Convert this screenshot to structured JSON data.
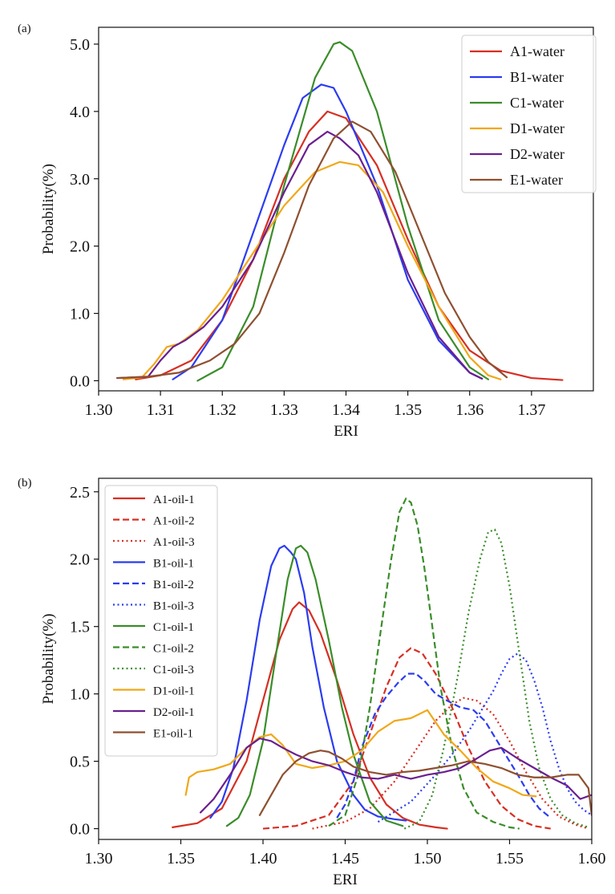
{
  "chart_data": [
    {
      "type": "line",
      "panel_label": "(a)",
      "xlabel": "ERI",
      "ylabel": "Probability(%)",
      "xlim": [
        1.3,
        1.38
      ],
      "ylim": [
        -0.15,
        5.25
      ],
      "xticks": [
        1.3,
        1.31,
        1.32,
        1.33,
        1.34,
        1.35,
        1.36,
        1.37
      ],
      "xtick_labels": [
        "1.30",
        "1.31",
        "1.32",
        "1.33",
        "1.34",
        "1.35",
        "1.36",
        "1.37"
      ],
      "yticks": [
        0,
        1,
        2,
        3,
        4,
        5
      ],
      "ytick_labels": [
        "0.0",
        "1.0",
        "2.0",
        "3.0",
        "4.0",
        "5.0"
      ],
      "grid": false,
      "legend_position": "top-right",
      "series": [
        {
          "name": "A1-water",
          "color": "#d62f23",
          "style": "solid",
          "x": [
            1.306,
            1.31,
            1.315,
            1.32,
            1.325,
            1.33,
            1.334,
            1.337,
            1.34,
            1.345,
            1.35,
            1.355,
            1.36,
            1.365,
            1.37,
            1.375
          ],
          "y": [
            0.02,
            0.08,
            0.3,
            0.9,
            1.8,
            3.0,
            3.7,
            4.0,
            3.9,
            3.2,
            2.1,
            1.1,
            0.45,
            0.15,
            0.04,
            0.01
          ]
        },
        {
          "name": "B1-water",
          "color": "#2b3cf0",
          "style": "solid",
          "x": [
            1.312,
            1.315,
            1.32,
            1.325,
            1.33,
            1.333,
            1.336,
            1.338,
            1.34,
            1.345,
            1.35,
            1.355,
            1.36,
            1.362
          ],
          "y": [
            0.02,
            0.2,
            0.9,
            2.2,
            3.5,
            4.2,
            4.4,
            4.35,
            4.0,
            2.9,
            1.5,
            0.6,
            0.12,
            0.03
          ]
        },
        {
          "name": "C1-water",
          "color": "#3a8d2a",
          "style": "solid",
          "x": [
            1.316,
            1.32,
            1.325,
            1.33,
            1.335,
            1.338,
            1.339,
            1.341,
            1.345,
            1.35,
            1.355,
            1.36,
            1.363
          ],
          "y": [
            0.0,
            0.2,
            1.1,
            2.9,
            4.5,
            5.0,
            5.03,
            4.9,
            4.0,
            2.3,
            0.9,
            0.2,
            0.02
          ]
        },
        {
          "name": "D1-water",
          "color": "#f0a818",
          "style": "solid",
          "x": [
            1.304,
            1.307,
            1.309,
            1.311,
            1.313,
            1.316,
            1.32,
            1.325,
            1.33,
            1.335,
            1.339,
            1.342,
            1.346,
            1.35,
            1.355,
            1.36,
            1.363,
            1.365
          ],
          "y": [
            0.02,
            0.05,
            0.25,
            0.5,
            0.55,
            0.75,
            1.2,
            1.9,
            2.6,
            3.1,
            3.25,
            3.2,
            2.8,
            2.0,
            1.1,
            0.35,
            0.08,
            0.02
          ]
        },
        {
          "name": "D2-water",
          "color": "#6a1f8f",
          "style": "solid",
          "x": [
            1.303,
            1.308,
            1.31,
            1.312,
            1.314,
            1.317,
            1.32,
            1.325,
            1.33,
            1.334,
            1.337,
            1.339,
            1.342,
            1.345,
            1.35,
            1.355,
            1.36,
            1.362
          ],
          "y": [
            0.04,
            0.06,
            0.3,
            0.5,
            0.6,
            0.8,
            1.1,
            1.8,
            2.8,
            3.5,
            3.7,
            3.6,
            3.35,
            2.8,
            1.6,
            0.65,
            0.12,
            0.03
          ]
        },
        {
          "name": "E1-water",
          "color": "#8e5030",
          "style": "solid",
          "x": [
            1.303,
            1.308,
            1.313,
            1.318,
            1.322,
            1.326,
            1.33,
            1.334,
            1.338,
            1.341,
            1.344,
            1.348,
            1.352,
            1.356,
            1.36,
            1.363,
            1.366
          ],
          "y": [
            0.04,
            0.06,
            0.12,
            0.3,
            0.55,
            1.0,
            1.9,
            2.9,
            3.6,
            3.85,
            3.7,
            3.1,
            2.2,
            1.3,
            0.65,
            0.28,
            0.05
          ]
        }
      ]
    },
    {
      "type": "line",
      "panel_label": "(b)",
      "xlabel": "ERI",
      "ylabel": "Probability(%)",
      "xlim": [
        1.3,
        1.6
      ],
      "ylim": [
        -0.08,
        2.6
      ],
      "xticks": [
        1.3,
        1.35,
        1.4,
        1.45,
        1.5,
        1.55,
        1.6
      ],
      "xtick_labels": [
        "1.30",
        "1.35",
        "1.40",
        "1.45",
        "1.50",
        "1.55",
        "1.60"
      ],
      "yticks": [
        0,
        0.5,
        1.0,
        1.5,
        2.0,
        2.5
      ],
      "ytick_labels": [
        "0.0",
        "0.5",
        "1.0",
        "1.5",
        "2.0",
        "2.5"
      ],
      "grid": false,
      "legend_position": "top-left",
      "series": [
        {
          "name": "A1-oil-1",
          "color": "#d62f23",
          "style": "solid",
          "x": [
            1.345,
            1.36,
            1.375,
            1.39,
            1.4,
            1.41,
            1.418,
            1.422,
            1.428,
            1.435,
            1.445,
            1.455,
            1.465,
            1.475,
            1.485,
            1.495,
            1.505,
            1.512
          ],
          "y": [
            0.01,
            0.04,
            0.15,
            0.5,
            0.95,
            1.4,
            1.63,
            1.68,
            1.62,
            1.45,
            1.1,
            0.7,
            0.38,
            0.18,
            0.08,
            0.03,
            0.01,
            0.0
          ]
        },
        {
          "name": "A1-oil-2",
          "color": "#d62f23",
          "style": "dashed",
          "x": [
            1.4,
            1.42,
            1.44,
            1.455,
            1.465,
            1.475,
            1.483,
            1.49,
            1.497,
            1.505,
            1.515,
            1.525,
            1.535,
            1.545,
            1.555,
            1.565,
            1.575
          ],
          "y": [
            0.0,
            0.02,
            0.1,
            0.35,
            0.7,
            1.05,
            1.27,
            1.34,
            1.3,
            1.15,
            0.9,
            0.6,
            0.35,
            0.17,
            0.07,
            0.02,
            0.0
          ]
        },
        {
          "name": "A1-oil-3",
          "color": "#d62f23",
          "style": "dotted",
          "x": [
            1.43,
            1.45,
            1.465,
            1.48,
            1.495,
            1.505,
            1.515,
            1.522,
            1.53,
            1.54,
            1.55,
            1.56,
            1.57,
            1.58,
            1.59,
            1.598
          ],
          "y": [
            0.0,
            0.05,
            0.15,
            0.35,
            0.62,
            0.8,
            0.92,
            0.97,
            0.95,
            0.85,
            0.65,
            0.42,
            0.22,
            0.09,
            0.03,
            0.0
          ]
        },
        {
          "name": "B1-oil-1",
          "color": "#2b3cf0",
          "style": "solid",
          "x": [
            1.368,
            1.375,
            1.382,
            1.39,
            1.398,
            1.405,
            1.41,
            1.413,
            1.417,
            1.42,
            1.425,
            1.43,
            1.437,
            1.445,
            1.455,
            1.462,
            1.47,
            1.48,
            1.487
          ],
          "y": [
            0.08,
            0.2,
            0.45,
            0.95,
            1.55,
            1.95,
            2.08,
            2.1,
            2.05,
            2.0,
            1.75,
            1.35,
            0.9,
            0.5,
            0.25,
            0.14,
            0.09,
            0.07,
            0.06
          ]
        },
        {
          "name": "B1-oil-2",
          "color": "#2b3cf0",
          "style": "dashed",
          "x": [
            1.445,
            1.45,
            1.455,
            1.46,
            1.468,
            1.475,
            1.482,
            1.488,
            1.493,
            1.498,
            1.505,
            1.512,
            1.52,
            1.528,
            1.535,
            1.545,
            1.555,
            1.562,
            1.568,
            1.575
          ],
          "y": [
            0.08,
            0.18,
            0.35,
            0.6,
            0.85,
            0.98,
            1.08,
            1.15,
            1.15,
            1.1,
            1.0,
            0.95,
            0.9,
            0.88,
            0.8,
            0.6,
            0.4,
            0.25,
            0.15,
            0.08
          ]
        },
        {
          "name": "B1-oil-3",
          "color": "#2b3cf0",
          "style": "dotted",
          "x": [
            1.47,
            1.49,
            1.505,
            1.515,
            1.525,
            1.533,
            1.54,
            1.545,
            1.55,
            1.555,
            1.56,
            1.565,
            1.57,
            1.575,
            1.58,
            1.585,
            1.59,
            1.595,
            1.6
          ],
          "y": [
            0.05,
            0.2,
            0.4,
            0.55,
            0.72,
            0.88,
            1.02,
            1.15,
            1.26,
            1.3,
            1.25,
            1.1,
            0.9,
            0.65,
            0.45,
            0.3,
            0.2,
            0.14,
            0.1
          ]
        },
        {
          "name": "C1-oil-1",
          "color": "#3a8d2a",
          "style": "solid",
          "x": [
            1.378,
            1.385,
            1.392,
            1.4,
            1.408,
            1.415,
            1.42,
            1.423,
            1.427,
            1.432,
            1.44,
            1.448,
            1.455,
            1.465,
            1.475,
            1.485
          ],
          "y": [
            0.02,
            0.08,
            0.25,
            0.65,
            1.3,
            1.85,
            2.08,
            2.1,
            2.05,
            1.85,
            1.4,
            0.9,
            0.55,
            0.2,
            0.06,
            0.02
          ]
        },
        {
          "name": "C1-oil-2",
          "color": "#3a8d2a",
          "style": "dashed",
          "x": [
            1.44,
            1.45,
            1.458,
            1.465,
            1.472,
            1.478,
            1.483,
            1.487,
            1.49,
            1.494,
            1.498,
            1.503,
            1.508,
            1.515,
            1.522,
            1.53,
            1.54,
            1.55,
            1.556
          ],
          "y": [
            0.02,
            0.1,
            0.4,
            0.9,
            1.5,
            2.0,
            2.35,
            2.45,
            2.42,
            2.25,
            1.95,
            1.5,
            1.05,
            0.6,
            0.3,
            0.12,
            0.05,
            0.01,
            0.0
          ]
        },
        {
          "name": "C1-oil-3",
          "color": "#3a8d2a",
          "style": "dotted",
          "x": [
            1.486,
            1.495,
            1.503,
            1.51,
            1.518,
            1.525,
            1.532,
            1.537,
            1.541,
            1.545,
            1.55,
            1.556,
            1.562,
            1.568,
            1.575,
            1.582,
            1.59,
            1.598
          ],
          "y": [
            0.0,
            0.05,
            0.25,
            0.6,
            1.1,
            1.6,
            2.0,
            2.2,
            2.22,
            2.12,
            1.8,
            1.3,
            0.8,
            0.45,
            0.22,
            0.1,
            0.04,
            0.01
          ]
        },
        {
          "name": "D1-oil-1",
          "color": "#f0a818",
          "style": "solid",
          "x": [
            1.353,
            1.355,
            1.36,
            1.37,
            1.38,
            1.39,
            1.398,
            1.405,
            1.412,
            1.42,
            1.43,
            1.44,
            1.45,
            1.46,
            1.47,
            1.48,
            1.49,
            1.5,
            1.51,
            1.52,
            1.53,
            1.54,
            1.55,
            1.558,
            1.566
          ],
          "y": [
            0.25,
            0.38,
            0.42,
            0.44,
            0.48,
            0.6,
            0.68,
            0.7,
            0.62,
            0.48,
            0.45,
            0.47,
            0.5,
            0.58,
            0.72,
            0.8,
            0.82,
            0.88,
            0.7,
            0.58,
            0.45,
            0.35,
            0.3,
            0.25,
            0.24
          ]
        },
        {
          "name": "D2-oil-1",
          "color": "#6a1f8f",
          "style": "solid",
          "x": [
            1.362,
            1.37,
            1.38,
            1.39,
            1.398,
            1.405,
            1.412,
            1.42,
            1.43,
            1.44,
            1.45,
            1.46,
            1.47,
            1.48,
            1.49,
            1.5,
            1.51,
            1.52,
            1.53,
            1.538,
            1.545,
            1.555,
            1.565,
            1.575,
            1.585,
            1.593,
            1.6
          ],
          "y": [
            0.12,
            0.22,
            0.4,
            0.6,
            0.67,
            0.65,
            0.6,
            0.55,
            0.5,
            0.47,
            0.42,
            0.38,
            0.37,
            0.4,
            0.37,
            0.4,
            0.42,
            0.45,
            0.52,
            0.58,
            0.6,
            0.52,
            0.45,
            0.38,
            0.32,
            0.22,
            0.25
          ]
        },
        {
          "name": "E1-oil-1",
          "color": "#8e5030",
          "style": "solid",
          "x": [
            1.398,
            1.405,
            1.412,
            1.42,
            1.428,
            1.435,
            1.44,
            1.448,
            1.455,
            1.465,
            1.475,
            1.485,
            1.495,
            1.505,
            1.515,
            1.525,
            1.535,
            1.545,
            1.555,
            1.565,
            1.575,
            1.585,
            1.592,
            1.598,
            1.6
          ],
          "y": [
            0.1,
            0.25,
            0.4,
            0.5,
            0.56,
            0.58,
            0.57,
            0.52,
            0.46,
            0.42,
            0.4,
            0.42,
            0.43,
            0.45,
            0.47,
            0.5,
            0.48,
            0.45,
            0.4,
            0.38,
            0.38,
            0.4,
            0.4,
            0.3,
            0.1
          ]
        }
      ]
    }
  ]
}
